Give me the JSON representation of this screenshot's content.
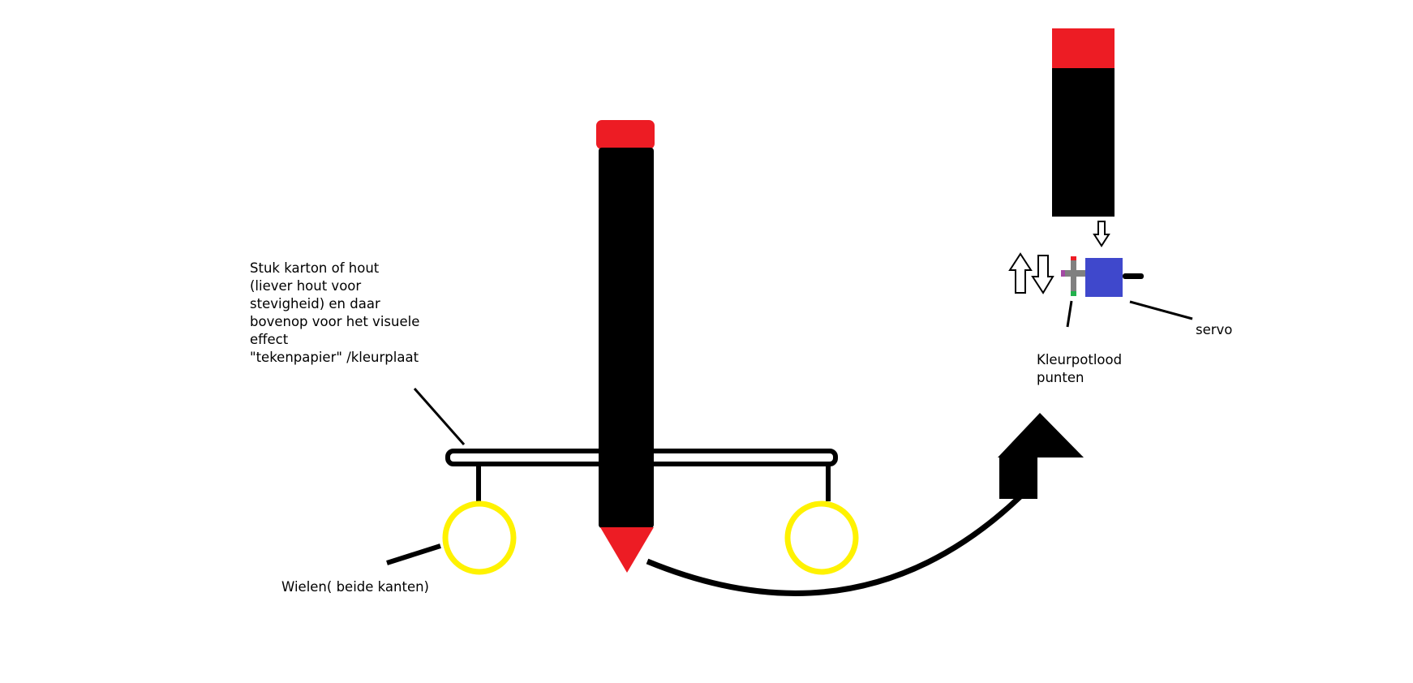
{
  "labels": {
    "board_lines": [
      "Stuk karton of hout",
      "(liever hout voor",
      "stevigheid) en daar",
      "bovenop voor het visuele",
      "effect",
      "\"tekenpapier\" /kleurplaat"
    ],
    "wheels": "Wielen( beide kanten)",
    "pencil_tips": [
      "Kleurpotlood",
      "punten"
    ],
    "servo": "servo"
  },
  "colors": {
    "pencil_body": "#000000",
    "pencil_cap": "#ed1c24",
    "pencil_tip": "#ed1c24",
    "wheel": "#fff200",
    "servo": "#3f48cc",
    "servo_arm": "#808080",
    "lead_top": "#ed1c24",
    "lead_side": "#a349a4",
    "lead_bottom": "#22b14c"
  }
}
